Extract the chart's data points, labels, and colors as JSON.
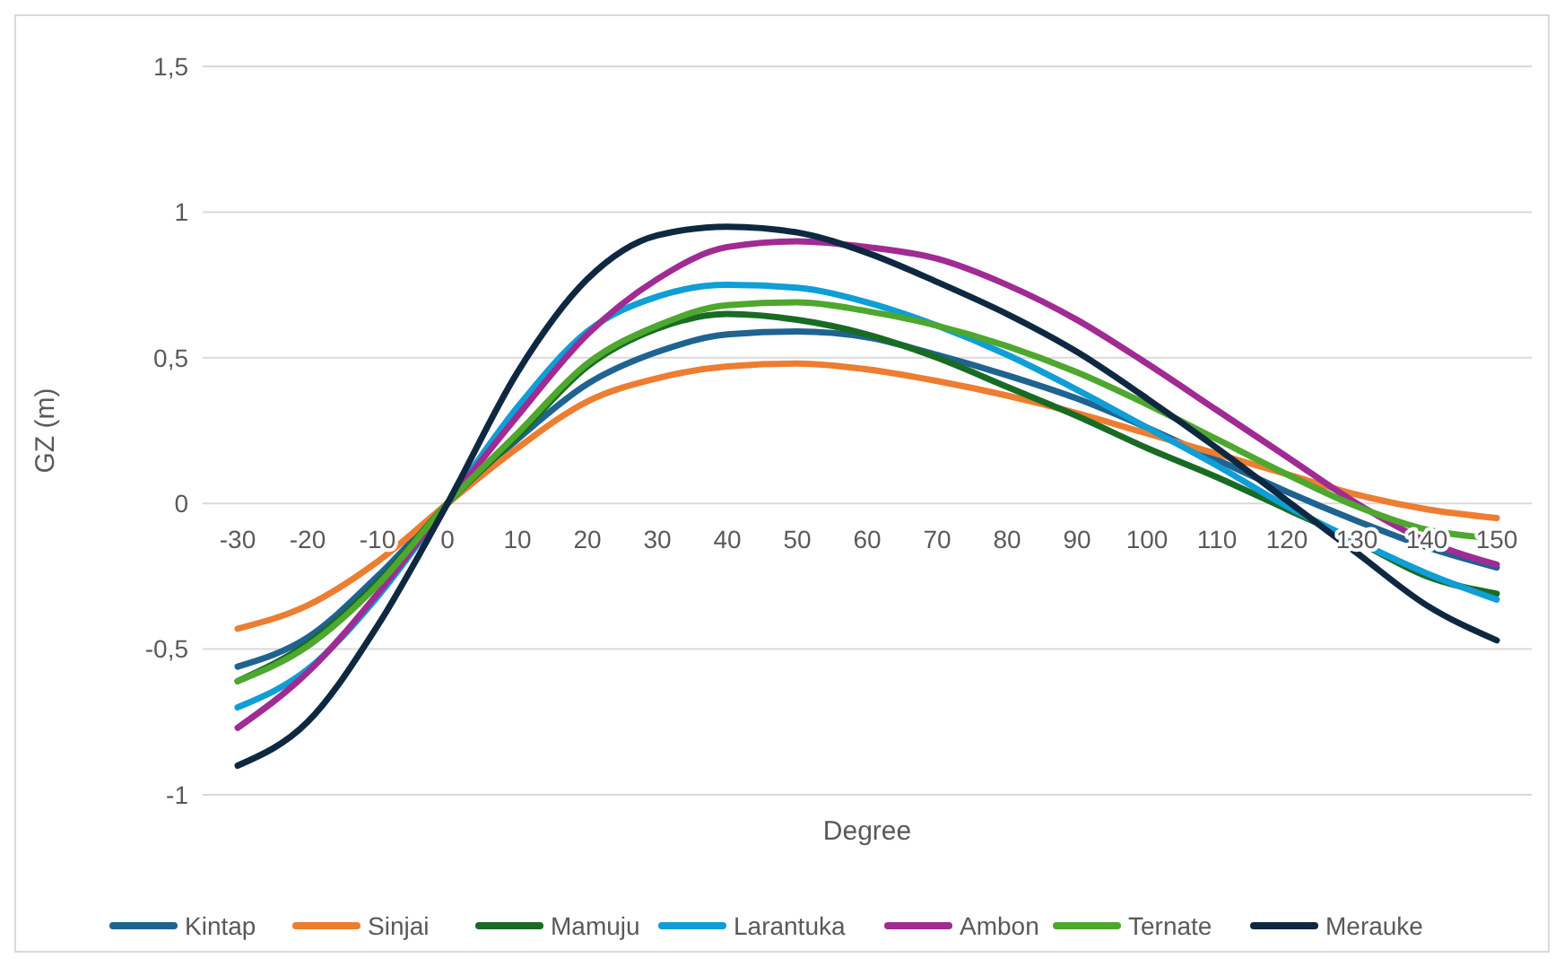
{
  "chart_data": {
    "type": "line",
    "xlabel": "Degree",
    "ylabel": "GZ (m)",
    "categories": [
      "-30",
      "-20",
      "-10",
      "0",
      "10",
      "20",
      "30",
      "40",
      "50",
      "60",
      "70",
      "80",
      "90",
      "100",
      "110",
      "120",
      "130",
      "140",
      "150"
    ],
    "ylim": [
      -1,
      1.5
    ],
    "yticks": [
      {
        "value": -1,
        "label": "-1"
      },
      {
        "value": -0.5,
        "label": "-0,5"
      },
      0,
      {
        "value": 0.5,
        "label": "0,5"
      },
      1,
      {
        "value": 1.5,
        "label": "1,5"
      }
    ],
    "grid": "y",
    "legend": "bottom",
    "marker": "none",
    "line_style": "solid",
    "series": [
      {
        "name": "Kintap",
        "color": "#1f6391",
        "values": [
          -0.56,
          -0.46,
          -0.25,
          0,
          0.22,
          0.41,
          0.52,
          0.58,
          0.59,
          0.57,
          0.51,
          0.44,
          0.36,
          0.26,
          0.15,
          0.04,
          -0.06,
          -0.15,
          -0.22
        ]
      },
      {
        "name": "Sinjai",
        "color": "#ed7d31",
        "values": [
          -0.43,
          -0.35,
          -0.2,
          0,
          0.19,
          0.35,
          0.43,
          0.47,
          0.48,
          0.46,
          0.42,
          0.37,
          0.31,
          0.24,
          0.17,
          0.1,
          0.03,
          -0.02,
          -0.05
        ]
      },
      {
        "name": "Mamuju",
        "color": "#196b24",
        "values": [
          -0.61,
          -0.48,
          -0.27,
          0,
          0.23,
          0.47,
          0.6,
          0.65,
          0.63,
          0.58,
          0.5,
          0.4,
          0.3,
          0.19,
          0.09,
          -0.02,
          -0.13,
          -0.25,
          -0.31
        ]
      },
      {
        "name": "Larantuka",
        "color": "#0f9ed5",
        "values": [
          -0.7,
          -0.57,
          -0.32,
          0,
          0.33,
          0.59,
          0.71,
          0.75,
          0.74,
          0.69,
          0.61,
          0.51,
          0.39,
          0.26,
          0.13,
          -0.01,
          -0.13,
          -0.24,
          -0.33
        ]
      },
      {
        "name": "Ambon",
        "color": "#a02b93",
        "values": [
          -0.77,
          -0.58,
          -0.31,
          0,
          0.3,
          0.58,
          0.77,
          0.88,
          0.9,
          0.88,
          0.84,
          0.75,
          0.63,
          0.48,
          0.32,
          0.16,
          0,
          -0.13,
          -0.21
        ]
      },
      {
        "name": "Ternate",
        "color": "#4ea72e",
        "values": [
          -0.61,
          -0.49,
          -0.28,
          0,
          0.24,
          0.48,
          0.61,
          0.68,
          0.69,
          0.66,
          0.61,
          0.54,
          0.45,
          0.34,
          0.22,
          0.1,
          -0.01,
          -0.09,
          -0.12
        ]
      },
      {
        "name": "Merauke",
        "color": "#0e2841",
        "values": [
          -0.9,
          -0.75,
          -0.42,
          0,
          0.45,
          0.77,
          0.92,
          0.95,
          0.93,
          0.86,
          0.76,
          0.65,
          0.52,
          0.36,
          0.19,
          0.01,
          -0.17,
          -0.35,
          -0.47
        ]
      }
    ]
  }
}
